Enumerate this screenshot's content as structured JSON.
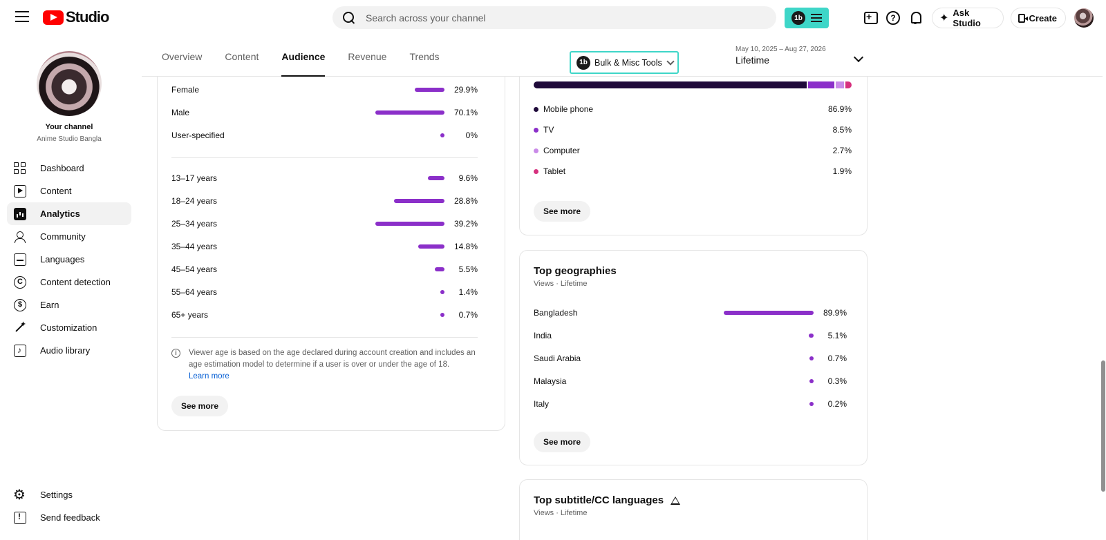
{
  "header": {
    "logo_text": "Studio",
    "search_placeholder": "Search across your channel",
    "extension_badge": "1b",
    "ask_studio_label": "Ask Studio",
    "create_label": "Create"
  },
  "sidebar": {
    "channel_title": "Your channel",
    "channel_name": "Anime Studio Bangla",
    "items": [
      {
        "label": "Dashboard",
        "icon": "dashboard-icon"
      },
      {
        "label": "Content",
        "icon": "content-icon"
      },
      {
        "label": "Analytics",
        "icon": "analytics-icon",
        "active": true
      },
      {
        "label": "Community",
        "icon": "community-icon"
      },
      {
        "label": "Languages",
        "icon": "languages-icon"
      },
      {
        "label": "Content detection",
        "icon": "copyright-icon"
      },
      {
        "label": "Earn",
        "icon": "dollar-icon"
      },
      {
        "label": "Customization",
        "icon": "magic-wand-icon"
      },
      {
        "label": "Audio library",
        "icon": "audio-library-icon"
      }
    ],
    "bottom_items": [
      {
        "label": "Settings",
        "icon": "gear-icon"
      },
      {
        "label": "Send feedback",
        "icon": "feedback-icon"
      }
    ]
  },
  "tabs": [
    {
      "label": "Overview"
    },
    {
      "label": "Content"
    },
    {
      "label": "Audience",
      "active": true
    },
    {
      "label": "Revenue"
    },
    {
      "label": "Trends"
    }
  ],
  "toolbar": {
    "bulk_badge": "1b",
    "bulk_label": "Bulk & Misc Tools",
    "date_range": "May 10, 2025 – Aug 27, 2026",
    "date_label": "Lifetime"
  },
  "gender": [
    {
      "label": "Female",
      "value": 29.9,
      "display": "29.9%"
    },
    {
      "label": "Male",
      "value": 70.1,
      "display": "70.1%"
    },
    {
      "label": "User-specified",
      "value": 0,
      "display": "0%"
    }
  ],
  "age": [
    {
      "label": "13–17 years",
      "value": 9.6,
      "display": "9.6%"
    },
    {
      "label": "18–24 years",
      "value": 28.8,
      "display": "28.8%"
    },
    {
      "label": "25–34 years",
      "value": 39.2,
      "display": "39.2%"
    },
    {
      "label": "35–44 years",
      "value": 14.8,
      "display": "14.8%"
    },
    {
      "label": "45–54 years",
      "value": 5.5,
      "display": "5.5%"
    },
    {
      "label": "55–64 years",
      "value": 1.4,
      "display": "1.4%"
    },
    {
      "label": "65+ years",
      "value": 0.7,
      "display": "0.7%"
    }
  ],
  "age_note": {
    "text": "Viewer age is based on the age declared during account creation and includes an age estimation model to determine if a user is over or under the age of 18.",
    "link": "Learn more"
  },
  "see_more_label": "See more",
  "devices": [
    {
      "label": "Mobile phone",
      "value": 86.9,
      "display": "86.9%",
      "color": "#1f0a3a"
    },
    {
      "label": "TV",
      "value": 8.5,
      "display": "8.5%",
      "color": "#8b2fc9"
    },
    {
      "label": "Computer",
      "value": 2.7,
      "display": "2.7%",
      "color": "#c98ae8"
    },
    {
      "label": "Tablet",
      "value": 1.9,
      "display": "1.9%",
      "color": "#d6307e"
    }
  ],
  "geographies": {
    "title": "Top geographies",
    "subtitle": "Views · Lifetime",
    "rows": [
      {
        "label": "Bangladesh",
        "value": 89.9,
        "display": "89.9%"
      },
      {
        "label": "India",
        "value": 5.1,
        "display": "5.1%"
      },
      {
        "label": "Saudi Arabia",
        "value": 0.7,
        "display": "0.7%"
      },
      {
        "label": "Malaysia",
        "value": 0.3,
        "display": "0.3%"
      },
      {
        "label": "Italy",
        "value": 0.2,
        "display": "0.2%"
      }
    ]
  },
  "subtitles": {
    "title": "Top subtitle/CC languages",
    "subtitle": "Views · Lifetime"
  },
  "colors": {
    "accent": "#8b2fc9",
    "extension": "#3ed6c8",
    "brand_red": "#ff0000",
    "link": "#065fd4"
  }
}
